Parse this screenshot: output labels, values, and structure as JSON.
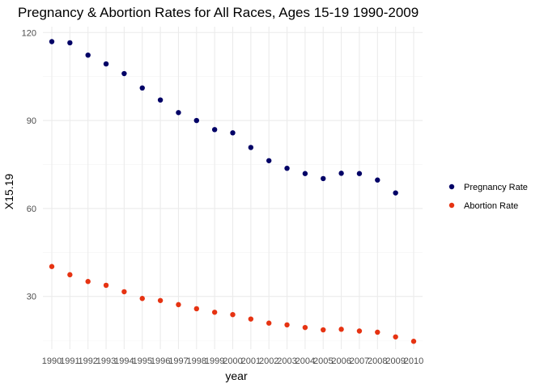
{
  "chart_data": {
    "type": "scatter",
    "title": "Pregnancy & Abortion Rates for All Races, Ages 15-19 1990-2009",
    "xlabel": "year",
    "ylabel": "X15.19",
    "xlim": [
      1990,
      2010
    ],
    "ylim": [
      12,
      122
    ],
    "x_ticks": [
      "1990",
      "1991",
      "1992",
      "1993",
      "1994",
      "1995",
      "1996",
      "1997",
      "1998",
      "1999",
      "2000",
      "2001",
      "2002",
      "2003",
      "2004",
      "2005",
      "2006",
      "2007",
      "2008",
      "2009",
      "2010"
    ],
    "y_ticks": [
      30,
      60,
      90,
      120
    ],
    "grid": true,
    "legend_position": "right",
    "series": [
      {
        "name": "Pregnancy Rate",
        "color": "#000066",
        "points": [
          [
            1990,
            116.9
          ],
          [
            1991,
            116.5
          ],
          [
            1992,
            112.3
          ],
          [
            1993,
            109.3
          ],
          [
            1994,
            106.0
          ],
          [
            1995,
            101.1
          ],
          [
            1996,
            97.0
          ],
          [
            1997,
            92.7
          ],
          [
            1998,
            90.0
          ],
          [
            1999,
            86.9
          ],
          [
            2000,
            85.8
          ],
          [
            2001,
            80.8
          ],
          [
            2002,
            76.3
          ],
          [
            2003,
            73.7
          ],
          [
            2004,
            71.9
          ],
          [
            2005,
            70.2
          ],
          [
            2006,
            72.0
          ],
          [
            2007,
            71.9
          ],
          [
            2008,
            69.7
          ],
          [
            2009,
            65.3
          ]
        ]
      },
      {
        "name": "Abortion Rate",
        "color": "#e63312",
        "points": [
          [
            1990,
            40.2
          ],
          [
            1991,
            37.4
          ],
          [
            1992,
            35.1
          ],
          [
            1993,
            33.8
          ],
          [
            1994,
            31.6
          ],
          [
            1995,
            29.3
          ],
          [
            1996,
            28.6
          ],
          [
            1997,
            27.2
          ],
          [
            1998,
            25.8
          ],
          [
            1999,
            24.6
          ],
          [
            2000,
            23.8
          ],
          [
            2001,
            22.3
          ],
          [
            2002,
            20.9
          ],
          [
            2003,
            20.3
          ],
          [
            2004,
            19.4
          ],
          [
            2005,
            18.6
          ],
          [
            2006,
            18.8
          ],
          [
            2007,
            18.2
          ],
          [
            2008,
            17.8
          ],
          [
            2009,
            16.2
          ],
          [
            2010,
            14.7
          ]
        ]
      }
    ]
  }
}
